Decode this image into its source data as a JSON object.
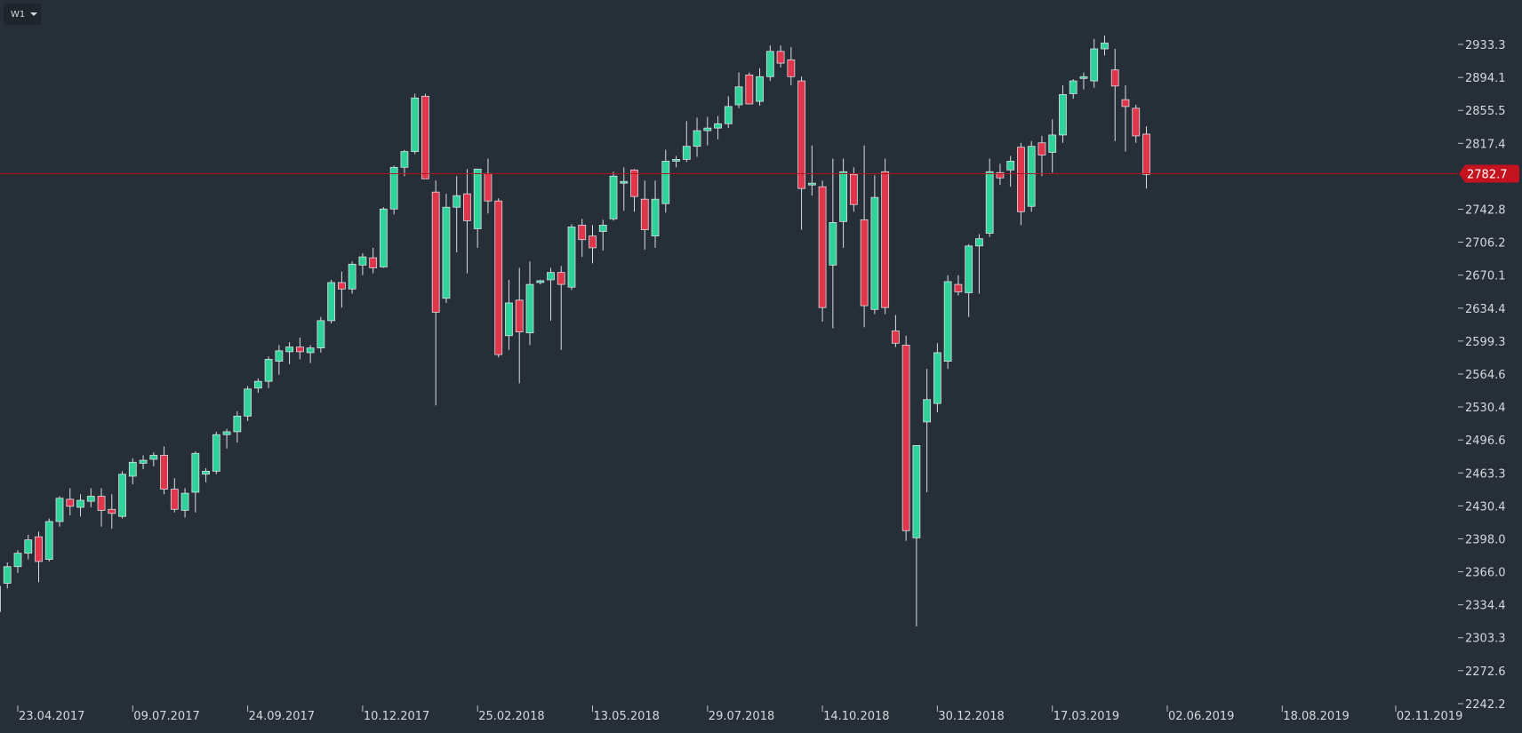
{
  "toolbar": {
    "timeframe_label": "W1",
    "dropdown_icon": "chevron-down-icon"
  },
  "colors": {
    "background": "#262f38",
    "bull": "#2fd39a",
    "bear": "#e0364c",
    "wick": "#d9dde2",
    "current_price_line": "#b3121f",
    "current_price_tag": "#c4121f"
  },
  "chart_data": {
    "type": "candlestick",
    "timeframe": "W1",
    "current_price": 2782.7,
    "current_price_label": "2782.7",
    "ylim": [
      2242.2,
      2978
    ],
    "y_ticks": [
      "2933.3",
      "2894.1",
      "2855.5",
      "2817.4",
      "2742.8",
      "2706.2",
      "2670.1",
      "2634.4",
      "2599.3",
      "2564.6",
      "2530.4",
      "2496.6",
      "2463.3",
      "2430.4",
      "2398.0",
      "2366.0",
      "2334.4",
      "2303.3",
      "2272.6",
      "2242.2"
    ],
    "x_ticks": [
      "23.04.2017",
      "09.07.2017",
      "24.09.2017",
      "10.12.2017",
      "25.02.2018",
      "13.05.2018",
      "29.07.2018",
      "14.10.2018",
      "30.12.2018",
      "17.03.2019",
      "02.06.2019",
      "18.08.2019",
      "02.11.2019"
    ],
    "first_candle_week": "2017-04-09",
    "candles": [
      [
        2328,
        2356,
        2326,
        2352
      ],
      [
        2355,
        2375,
        2350,
        2371
      ],
      [
        2371,
        2387,
        2365,
        2384
      ],
      [
        2384,
        2402,
        2378,
        2397
      ],
      [
        2400,
        2405,
        2356,
        2376
      ],
      [
        2378,
        2418,
        2376,
        2415
      ],
      [
        2415,
        2440,
        2410,
        2438
      ],
      [
        2437,
        2448,
        2421,
        2430
      ],
      [
        2429,
        2442,
        2420,
        2436
      ],
      [
        2435,
        2448,
        2429,
        2440
      ],
      [
        2440,
        2448,
        2410,
        2426
      ],
      [
        2427,
        2442,
        2408,
        2423
      ],
      [
        2420,
        2465,
        2418,
        2462
      ],
      [
        2460,
        2478,
        2452,
        2474
      ],
      [
        2473,
        2481,
        2467,
        2476
      ],
      [
        2477,
        2484,
        2470,
        2481
      ],
      [
        2481,
        2490,
        2442,
        2447
      ],
      [
        2447,
        2458,
        2424,
        2427
      ],
      [
        2426,
        2448,
        2419,
        2443
      ],
      [
        2444,
        2485,
        2424,
        2483
      ],
      [
        2462,
        2468,
        2454,
        2465
      ],
      [
        2465,
        2505,
        2462,
        2502
      ],
      [
        2502,
        2508,
        2488,
        2505
      ],
      [
        2505,
        2526,
        2494,
        2521
      ],
      [
        2521,
        2552,
        2516,
        2549
      ],
      [
        2550,
        2560,
        2545,
        2557
      ],
      [
        2557,
        2583,
        2550,
        2580
      ],
      [
        2578,
        2595,
        2564,
        2589
      ],
      [
        2588,
        2598,
        2575,
        2593
      ],
      [
        2593,
        2603,
        2580,
        2588
      ],
      [
        2587,
        2595,
        2576,
        2592
      ],
      [
        2592,
        2625,
        2587,
        2621
      ],
      [
        2621,
        2665,
        2618,
        2662
      ],
      [
        2662,
        2674,
        2635,
        2655
      ],
      [
        2655,
        2685,
        2650,
        2682
      ],
      [
        2681,
        2694,
        2670,
        2690
      ],
      [
        2689,
        2700,
        2672,
        2678
      ],
      [
        2679,
        2745,
        2678,
        2743
      ],
      [
        2743,
        2792,
        2737,
        2790
      ],
      [
        2790,
        2810,
        2780,
        2808
      ],
      [
        2808,
        2875,
        2805,
        2870
      ],
      [
        2872,
        2875,
        2780,
        2777
      ],
      [
        2762,
        2775,
        2532,
        2630
      ],
      [
        2645,
        2760,
        2640,
        2745
      ],
      [
        2745,
        2780,
        2695,
        2758
      ],
      [
        2760,
        2788,
        2672,
        2730
      ],
      [
        2721,
        2788,
        2700,
        2788
      ],
      [
        2783,
        2800,
        2738,
        2752
      ],
      [
        2752,
        2755,
        2582,
        2585
      ],
      [
        2605,
        2665,
        2590,
        2640
      ],
      [
        2643,
        2678,
        2555,
        2609
      ],
      [
        2608,
        2685,
        2595,
        2660
      ],
      [
        2664,
        2665,
        2660,
        2664
      ],
      [
        2665,
        2678,
        2621,
        2673
      ],
      [
        2673,
        2680,
        2590,
        2660
      ],
      [
        2657,
        2726,
        2654,
        2723
      ],
      [
        2725,
        2732,
        2690,
        2709
      ],
      [
        2713,
        2725,
        2683,
        2700
      ],
      [
        2718,
        2731,
        2697,
        2725
      ],
      [
        2732,
        2785,
        2730,
        2780
      ],
      [
        2774,
        2790,
        2741,
        2774
      ],
      [
        2787,
        2788,
        2740,
        2757
      ],
      [
        2754,
        2775,
        2698,
        2720
      ],
      [
        2713,
        2775,
        2700,
        2754
      ],
      [
        2749,
        2810,
        2739,
        2797
      ],
      [
        2797,
        2803,
        2790,
        2799
      ],
      [
        2799,
        2843,
        2796,
        2814
      ],
      [
        2814,
        2847,
        2802,
        2832
      ],
      [
        2832,
        2848,
        2815,
        2835
      ],
      [
        2835,
        2849,
        2822,
        2840
      ],
      [
        2840,
        2872,
        2835,
        2860
      ],
      [
        2862,
        2900,
        2858,
        2883
      ],
      [
        2897,
        2900,
        2870,
        2863
      ],
      [
        2866,
        2905,
        2861,
        2895
      ],
      [
        2895,
        2932,
        2890,
        2925
      ],
      [
        2925,
        2932,
        2906,
        2911
      ],
      [
        2915,
        2930,
        2885,
        2895
      ],
      [
        2890,
        2895,
        2720,
        2766
      ],
      [
        2770,
        2815,
        2758,
        2772
      ],
      [
        2768,
        2775,
        2620,
        2635
      ],
      [
        2681,
        2800,
        2613,
        2728
      ],
      [
        2729,
        2800,
        2700,
        2785
      ],
      [
        2782,
        2790,
        2740,
        2748
      ],
      [
        2731,
        2815,
        2614,
        2637
      ],
      [
        2633,
        2781,
        2628,
        2756
      ],
      [
        2785,
        2800,
        2628,
        2635
      ],
      [
        2610,
        2627,
        2593,
        2597
      ],
      [
        2595,
        2605,
        2396,
        2406
      ],
      [
        2399,
        2488,
        2314,
        2491
      ],
      [
        2515,
        2570,
        2444,
        2538
      ],
      [
        2534,
        2597,
        2525,
        2587
      ],
      [
        2578,
        2670,
        2570,
        2663
      ],
      [
        2660,
        2670,
        2648,
        2652
      ],
      [
        2651,
        2704,
        2625,
        2702
      ],
      [
        2702,
        2715,
        2650,
        2710
      ],
      [
        2716,
        2800,
        2712,
        2785
      ],
      [
        2784,
        2794,
        2770,
        2778
      ],
      [
        2787,
        2803,
        2768,
        2797
      ],
      [
        2813,
        2818,
        2725,
        2740
      ],
      [
        2746,
        2820,
        2740,
        2814
      ],
      [
        2818,
        2826,
        2780,
        2804
      ],
      [
        2807,
        2845,
        2784,
        2827
      ],
      [
        2827,
        2885,
        2818,
        2874
      ],
      [
        2875,
        2892,
        2869,
        2890
      ],
      [
        2893,
        2900,
        2880,
        2895
      ],
      [
        2890,
        2940,
        2882,
        2928
      ],
      [
        2928,
        2944,
        2920,
        2935
      ],
      [
        2903,
        2928,
        2820,
        2884
      ],
      [
        2868,
        2885,
        2808,
        2860
      ],
      [
        2858,
        2862,
        2818,
        2826
      ],
      [
        2828,
        2837,
        2766,
        2782
      ]
    ]
  }
}
